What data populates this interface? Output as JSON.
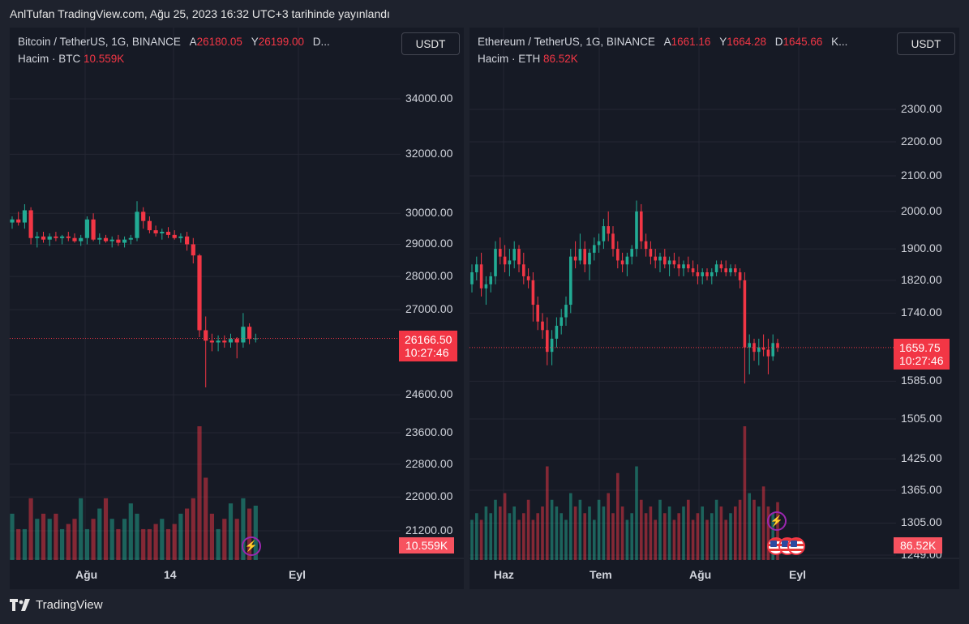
{
  "header": {
    "text": "AnlTufan TradingView.com, Ağu 25, 2023 16:32 UTC+3 tarihinde yayınlandı"
  },
  "footer": {
    "brand": "TradingView"
  },
  "colors": {
    "up": "#22ab94",
    "down": "#f23645",
    "background": "#161a25",
    "page": "#1e222d"
  },
  "icons": {
    "logo": "tradingview-logo-icon",
    "lightning": "lightning-icon",
    "flag": "us-flag-icon"
  },
  "btc": {
    "symbol": "Bitcoin / TetherUS, 1G, BINANCE",
    "o_label": "A",
    "o_value": "26180.05",
    "h_label": "Y",
    "h_value": "26199.00",
    "more": "D...",
    "volume_label": "Hacim · BTC",
    "volume_value": "10.559K",
    "currency_button": "USDT",
    "price_badge": "26166.50",
    "countdown": "10:27:46",
    "volume_badge": "10.559K",
    "y_ticks": [
      "34000.00",
      "32000.00",
      "30000.00",
      "29000.00",
      "28000.00",
      "27000.00",
      "24600.00",
      "23600.00",
      "22800.00",
      "22000.00",
      "21200.00"
    ],
    "x_ticks": [
      "Ağu",
      "14",
      "Eyl"
    ]
  },
  "eth": {
    "symbol": "Ethereum / TetherUS, 1G, BINANCE",
    "o_label": "A",
    "o_value": "1661.16",
    "h_label": "Y",
    "h_value": "1664.28",
    "l_label": "D",
    "l_value": "1645.66",
    "more": "K...",
    "volume_label": "Hacim · ETH",
    "volume_value": "86.52K",
    "currency_button": "USDT",
    "price_badge": "1659.75",
    "countdown": "10:27:46",
    "volume_badge": "86.52K",
    "y_ticks": [
      "2300.00",
      "2200.00",
      "2100.00",
      "2000.00",
      "1900.00",
      "1820.00",
      "1740.00",
      "1585.00",
      "1505.00",
      "1425.00",
      "1365.00",
      "1305.00",
      "1249.00"
    ],
    "x_ticks": [
      "Haz",
      "Tem",
      "Ağu",
      "Eyl"
    ]
  },
  "chart_data": [
    {
      "type": "candlestick",
      "title": "Bitcoin / TetherUS, 1G, BINANCE",
      "y_scale": "log",
      "ylim": [
        21000,
        35000
      ],
      "x_ticks": [
        "Ağu",
        "14",
        "Eyl"
      ],
      "last_price": 26166.5,
      "candles": [
        [
          29700,
          29900,
          29500,
          29800
        ],
        [
          29800,
          30050,
          29600,
          29700
        ],
        [
          29700,
          30300,
          29500,
          30100
        ],
        [
          30100,
          30200,
          29000,
          29200
        ],
        [
          29200,
          29400,
          28900,
          29250
        ],
        [
          29250,
          29400,
          29050,
          29150
        ],
        [
          29150,
          29350,
          28950,
          29250
        ],
        [
          29250,
          29400,
          29100,
          29200
        ],
        [
          29200,
          29300,
          29000,
          29250
        ],
        [
          29250,
          29400,
          29100,
          29200
        ],
        [
          29200,
          29350,
          29050,
          29100
        ],
        [
          29100,
          29300,
          28950,
          29200
        ],
        [
          29200,
          29900,
          29000,
          29800
        ],
        [
          29800,
          30000,
          29100,
          29150
        ],
        [
          29150,
          29350,
          29000,
          29200
        ],
        [
          29200,
          29300,
          29050,
          29100
        ],
        [
          29100,
          29250,
          28900,
          29150
        ],
        [
          29150,
          29300,
          28950,
          29050
        ],
        [
          29050,
          29250,
          28900,
          29150
        ],
        [
          29150,
          29300,
          29000,
          29200
        ],
        [
          29200,
          30400,
          29100,
          30050
        ],
        [
          30050,
          30200,
          29500,
          29750
        ],
        [
          29750,
          29900,
          29350,
          29450
        ],
        [
          29450,
          29600,
          29250,
          29350
        ],
        [
          29350,
          29500,
          29150,
          29400
        ],
        [
          29400,
          29550,
          29200,
          29300
        ],
        [
          29300,
          29450,
          29150,
          29200
        ],
        [
          29200,
          29350,
          29050,
          29250
        ],
        [
          29250,
          29400,
          28800,
          29000
        ],
        [
          29000,
          29200,
          28400,
          28650
        ],
        [
          28650,
          28700,
          26200,
          26400
        ],
        [
          26400,
          26800,
          24800,
          26100
        ],
        [
          26100,
          26300,
          25800,
          26050
        ],
        [
          26050,
          26250,
          25800,
          26100
        ],
        [
          26100,
          26250,
          25900,
          26050
        ],
        [
          26050,
          26300,
          25900,
          26150
        ],
        [
          26150,
          26200,
          25600,
          26050
        ],
        [
          26050,
          26900,
          25900,
          26500
        ],
        [
          26500,
          26600,
          26000,
          26150
        ],
        [
          26150,
          26300,
          26050,
          26166
        ]
      ],
      "volumes": [
        9,
        6,
        6,
        12,
        8,
        9,
        8,
        9,
        6,
        7,
        8,
        12,
        6,
        8,
        10,
        12,
        8,
        6,
        8,
        11,
        9,
        6,
        6,
        7,
        8,
        6,
        7,
        9,
        10,
        12,
        26,
        16,
        9,
        6,
        8,
        11,
        8,
        12,
        10,
        10.559
      ]
    },
    {
      "type": "candlestick",
      "title": "Ethereum / TetherUS, 1G, BINANCE",
      "y_scale": "log",
      "ylim": [
        1245,
        2350
      ],
      "x_ticks": [
        "Haz",
        "Tem",
        "Ağu",
        "Eyl"
      ],
      "last_price": 1659.75,
      "candles": [
        [
          1810,
          1860,
          1790,
          1840
        ],
        [
          1840,
          1880,
          1820,
          1860
        ],
        [
          1860,
          1890,
          1780,
          1800
        ],
        [
          1800,
          1830,
          1760,
          1810
        ],
        [
          1810,
          1840,
          1790,
          1830
        ],
        [
          1830,
          1920,
          1810,
          1900
        ],
        [
          1900,
          1930,
          1860,
          1880
        ],
        [
          1880,
          1910,
          1840,
          1860
        ],
        [
          1860,
          1900,
          1830,
          1870
        ],
        [
          1870,
          1920,
          1850,
          1900
        ],
        [
          1900,
          1910,
          1840,
          1860
        ],
        [
          1860,
          1890,
          1810,
          1830
        ],
        [
          1830,
          1850,
          1800,
          1820
        ],
        [
          1820,
          1840,
          1720,
          1760
        ],
        [
          1760,
          1780,
          1700,
          1720
        ],
        [
          1720,
          1740,
          1680,
          1700
        ],
        [
          1700,
          1730,
          1620,
          1650
        ],
        [
          1650,
          1700,
          1620,
          1680
        ],
        [
          1680,
          1730,
          1660,
          1710
        ],
        [
          1710,
          1750,
          1690,
          1730
        ],
        [
          1730,
          1780,
          1710,
          1760
        ],
        [
          1760,
          1900,
          1740,
          1880
        ],
        [
          1880,
          1920,
          1850,
          1870
        ],
        [
          1870,
          1940,
          1860,
          1900
        ],
        [
          1900,
          1920,
          1840,
          1860
        ],
        [
          1860,
          1900,
          1820,
          1890
        ],
        [
          1890,
          1930,
          1870,
          1910
        ],
        [
          1910,
          1940,
          1890,
          1920
        ],
        [
          1920,
          1980,
          1900,
          1960
        ],
        [
          1960,
          2000,
          1920,
          1940
        ],
        [
          1940,
          1960,
          1880,
          1900
        ],
        [
          1900,
          1920,
          1850,
          1870
        ],
        [
          1870,
          1890,
          1840,
          1860
        ],
        [
          1860,
          1890,
          1830,
          1880
        ],
        [
          1880,
          1910,
          1860,
          1900
        ],
        [
          1900,
          2030,
          1880,
          2000
        ],
        [
          2000,
          2020,
          1900,
          1920
        ],
        [
          1920,
          1940,
          1880,
          1900
        ],
        [
          1900,
          1920,
          1860,
          1880
        ],
        [
          1880,
          1900,
          1850,
          1870
        ],
        [
          1870,
          1890,
          1840,
          1880
        ],
        [
          1880,
          1900,
          1850,
          1860
        ],
        [
          1860,
          1880,
          1830,
          1870
        ],
        [
          1870,
          1890,
          1850,
          1860
        ],
        [
          1860,
          1880,
          1830,
          1850
        ],
        [
          1850,
          1870,
          1830,
          1860
        ],
        [
          1860,
          1880,
          1840,
          1850
        ],
        [
          1850,
          1870,
          1830,
          1840
        ],
        [
          1840,
          1860,
          1810,
          1830
        ],
        [
          1830,
          1850,
          1810,
          1840
        ],
        [
          1840,
          1850,
          1820,
          1830
        ],
        [
          1830,
          1850,
          1810,
          1840
        ],
        [
          1840,
          1870,
          1830,
          1860
        ],
        [
          1860,
          1870,
          1840,
          1850
        ],
        [
          1850,
          1870,
          1830,
          1840
        ],
        [
          1840,
          1860,
          1830,
          1850
        ],
        [
          1850,
          1860,
          1830,
          1840
        ],
        [
          1840,
          1850,
          1800,
          1820
        ],
        [
          1820,
          1840,
          1580,
          1660
        ],
        [
          1660,
          1690,
          1600,
          1670
        ],
        [
          1670,
          1680,
          1630,
          1650
        ],
        [
          1650,
          1680,
          1620,
          1660
        ],
        [
          1660,
          1690,
          1640,
          1655
        ],
        [
          1655,
          1680,
          1600,
          1640
        ],
        [
          1640,
          1690,
          1630,
          1670
        ],
        [
          1670,
          1680,
          1650,
          1660
        ]
      ],
      "volumes": [
        6,
        7,
        6,
        8,
        7,
        9,
        8,
        10,
        7,
        8,
        6,
        7,
        9,
        6,
        7,
        8,
        14,
        9,
        8,
        7,
        6,
        10,
        8,
        9,
        7,
        8,
        6,
        9,
        8,
        10,
        7,
        13,
        8,
        6,
        7,
        14,
        9,
        7,
        8,
        6,
        9,
        7,
        8,
        6,
        7,
        8,
        9,
        6,
        7,
        8,
        6,
        7,
        9,
        8,
        6,
        7,
        8,
        9,
        20,
        10,
        9,
        8,
        11,
        8,
        7,
        8.652
      ]
    }
  ]
}
